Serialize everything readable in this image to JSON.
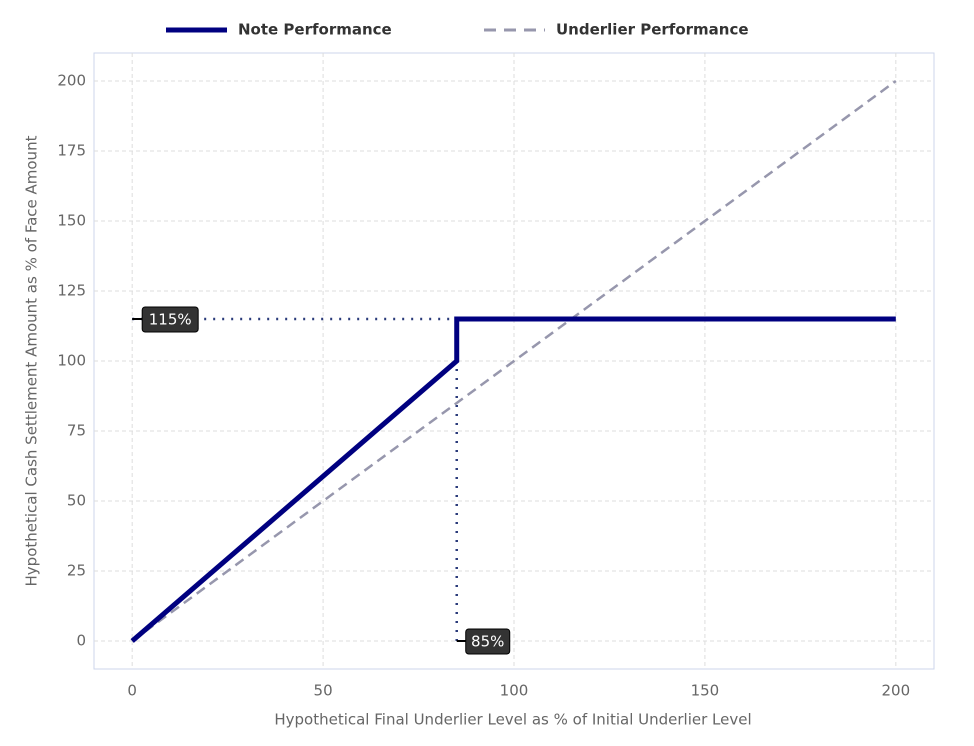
{
  "chart_data": {
    "type": "line",
    "x_label": "Hypothetical Final Underlier Level as % of Initial Underlier Level",
    "y_label": "Hypothetical Cash Settlement Amount as % of Face Amount",
    "xlim": [
      -10,
      210
    ],
    "ylim": [
      -10,
      210
    ],
    "xticks": [
      0,
      50,
      100,
      150,
      200
    ],
    "yticks": [
      0,
      25,
      50,
      75,
      100,
      125,
      150,
      175,
      200
    ],
    "grid": true,
    "legend": "top",
    "series": [
      {
        "name": "Note Performance",
        "color": "#000080",
        "style": "solid",
        "x": [
          0,
          85,
          85,
          200
        ],
        "values": [
          0,
          100,
          115,
          115
        ]
      },
      {
        "name": "Underlier Performance",
        "color": "#9797ad",
        "style": "dashed",
        "x": [
          0,
          200
        ],
        "values": [
          0,
          200
        ]
      }
    ],
    "annotations": [
      {
        "axis": "y",
        "value": 115,
        "label": "115%"
      },
      {
        "axis": "x",
        "value": 85,
        "label": "85%"
      }
    ]
  }
}
